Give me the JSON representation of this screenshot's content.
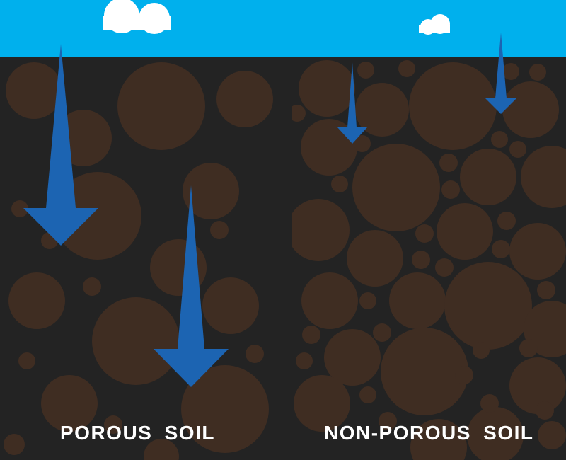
{
  "labels": {
    "left": "POROUS  SOIL",
    "right": "NON-POROUS  SOIL"
  },
  "colors": {
    "sky": "#00b0ed",
    "cloud": "#ffffff",
    "soil_background": "#232323",
    "soil_particle": "#3f2d22",
    "water_arrow": "#1c64b2",
    "label_text": "#ffffff"
  },
  "icons": [
    "cloud-icon",
    "water-arrow-icon"
  ]
}
